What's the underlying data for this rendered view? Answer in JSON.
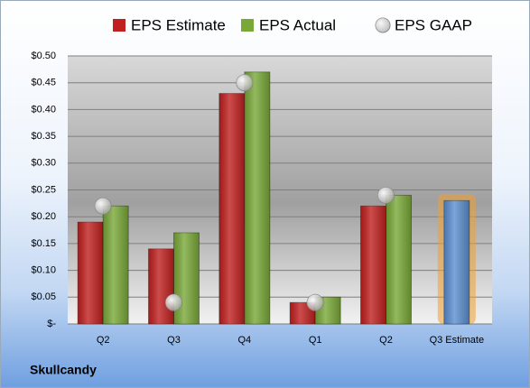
{
  "chart_data": {
    "type": "bar",
    "categories": [
      "Q2",
      "Q3",
      "Q4",
      "Q1",
      "Q2",
      "Q3 Estimate"
    ],
    "series": [
      {
        "name": "EPS Estimate",
        "color": "#c0201f",
        "colors": [
          "#c0201f",
          "#c0201f",
          "#c0201f",
          "#c0201f",
          "#c0201f",
          "#5b8fd0"
        ],
        "values": [
          0.19,
          0.14,
          0.43,
          0.04,
          0.22,
          0.23
        ]
      },
      {
        "name": "EPS Actual",
        "color": "#79a838",
        "values": [
          0.22,
          0.17,
          0.47,
          0.05,
          0.24,
          null
        ]
      },
      {
        "name": "EPS GAAP",
        "type": "scatter",
        "color": "#a8a8a8",
        "values": [
          0.22,
          0.04,
          0.45,
          0.04,
          0.24,
          null
        ]
      }
    ],
    "ylim": [
      0,
      0.5
    ],
    "yticks": [
      {
        "value": 0,
        "label": "$-"
      },
      {
        "value": 0.05,
        "label": "$0.05"
      },
      {
        "value": 0.1,
        "label": "$0.10"
      },
      {
        "value": 0.15,
        "label": "$0.15"
      },
      {
        "value": 0.2,
        "label": "$0.20"
      },
      {
        "value": 0.25,
        "label": "$0.25"
      },
      {
        "value": 0.3,
        "label": "$0.30"
      },
      {
        "value": 0.35,
        "label": "$0.35"
      },
      {
        "value": 0.4,
        "label": "$0.40"
      },
      {
        "value": 0.45,
        "label": "$0.45"
      },
      {
        "value": 0.5,
        "label": "$0.50"
      }
    ],
    "grid": true,
    "legend": "top",
    "footer": "Skullcandy"
  }
}
